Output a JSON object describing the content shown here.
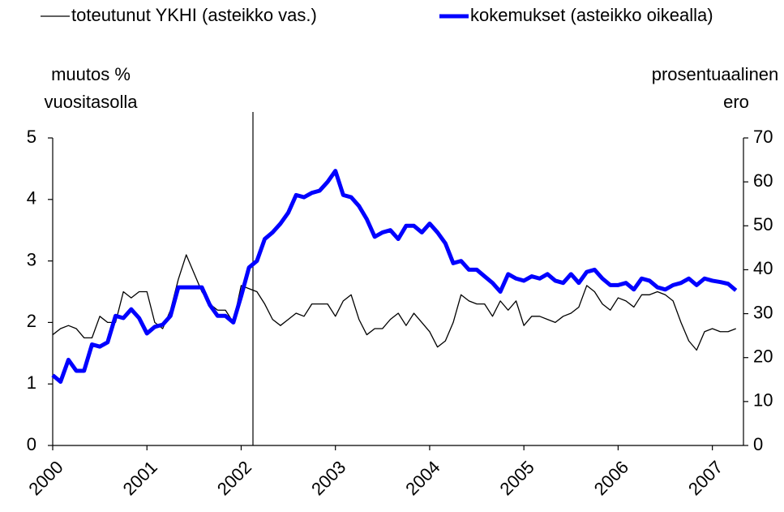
{
  "chart_data": {
    "type": "line",
    "legend": "top",
    "y_label": [
      "muutos %",
      "vuositasolla"
    ],
    "y2_label": [
      "prosentuaalinen",
      "ero"
    ],
    "x": [
      2000,
      2000.083,
      2000.167,
      2000.25,
      2000.333,
      2000.417,
      2000.5,
      2000.583,
      2000.667,
      2000.75,
      2000.833,
      2000.917,
      2001,
      2001.083,
      2001.167,
      2001.25,
      2001.333,
      2001.417,
      2001.5,
      2001.583,
      2001.667,
      2001.75,
      2001.833,
      2001.917,
      2002,
      2002.083,
      2002.167,
      2002.25,
      2002.333,
      2002.417,
      2002.5,
      2002.583,
      2002.667,
      2002.75,
      2002.833,
      2002.917,
      2003,
      2003.083,
      2003.167,
      2003.25,
      2003.333,
      2003.417,
      2003.5,
      2003.583,
      2003.667,
      2003.75,
      2003.833,
      2003.917,
      2004,
      2004.083,
      2004.167,
      2004.25,
      2004.333,
      2004.417,
      2004.5,
      2004.583,
      2004.667,
      2004.75,
      2004.833,
      2004.917,
      2005,
      2005.083,
      2005.167,
      2005.25,
      2005.333,
      2005.417,
      2005.5,
      2005.583,
      2005.667,
      2005.75,
      2005.833,
      2005.917,
      2006,
      2006.083,
      2006.167,
      2006.25,
      2006.333,
      2006.417,
      2006.5,
      2006.583,
      2006.667,
      2006.75,
      2006.833,
      2006.917,
      2007,
      2007.083,
      2007.167,
      2007.25
    ],
    "series": [
      {
        "name": "toteutunut YKHI (asteikko vas.)",
        "color": "#000000",
        "width": 1.3,
        "values": [
          1.8,
          1.9,
          1.95,
          1.9,
          1.75,
          1.75,
          2.1,
          2.0,
          2.0,
          2.5,
          2.4,
          2.5,
          2.5,
          2.0,
          1.9,
          2.2,
          2.7,
          3.1,
          2.8,
          2.5,
          2.3,
          2.2,
          2.2,
          2.0,
          2.6,
          2.55,
          2.5,
          2.3,
          2.05,
          1.95,
          2.05,
          2.15,
          2.1,
          2.3,
          2.3,
          2.3,
          2.1,
          2.35,
          2.45,
          2.05,
          1.8,
          1.9,
          1.9,
          2.05,
          2.15,
          1.95,
          2.15,
          2.0,
          1.85,
          1.6,
          1.7,
          2.0,
          2.45,
          2.35,
          2.3,
          2.3,
          2.1,
          2.35,
          2.2,
          2.35,
          1.95,
          2.1,
          2.1,
          2.05,
          2.0,
          2.1,
          2.15,
          2.25,
          2.6,
          2.5,
          2.3,
          2.2,
          2.4,
          2.35,
          2.25,
          2.45,
          2.45,
          2.5,
          2.45,
          2.35,
          2.0,
          1.7,
          1.55,
          1.85,
          1.9,
          1.85,
          1.85,
          1.9
        ]
      },
      {
        "name": "kokemukset (asteikko oikealla)",
        "color": "#0000ff",
        "width": 5,
        "axis": "y2",
        "values": [
          16,
          14.5,
          19.5,
          17,
          17,
          23,
          22.5,
          23.5,
          29.5,
          29,
          31,
          29,
          25.5,
          27,
          27.5,
          29.5,
          36,
          36,
          36,
          36,
          32,
          29.5,
          29.5,
          28,
          34,
          40.5,
          42,
          47,
          48.5,
          50.5,
          53,
          57,
          56.5,
          57.5,
          58,
          60,
          62.5,
          57,
          56.5,
          54.5,
          51.5,
          47.5,
          48.5,
          49,
          47,
          50,
          50,
          48.5,
          50.5,
          48.5,
          46,
          41.5,
          42,
          40,
          40,
          38.5,
          37,
          35,
          39,
          38,
          37.5,
          38.5,
          38,
          39,
          37.5,
          37,
          39,
          37,
          39.5,
          40,
          38,
          36.5,
          36.5,
          37,
          35.5,
          38,
          37.5,
          36,
          35.5,
          36.5,
          37,
          38,
          36.5,
          38,
          37.5,
          37.2,
          36.8,
          35.3
        ]
      }
    ],
    "vertical_line": 2002.125,
    "xlim": [
      2000,
      2007.33
    ],
    "xticks": [
      2000,
      2001,
      2002,
      2003,
      2004,
      2005,
      2006,
      2007
    ],
    "ylim": [
      0,
      5
    ],
    "yticks": [
      0,
      1,
      2,
      3,
      4,
      5
    ],
    "y2lim": [
      0,
      70
    ],
    "y2ticks": [
      0,
      10,
      20,
      30,
      40,
      50,
      60,
      70
    ],
    "grid": false
  }
}
